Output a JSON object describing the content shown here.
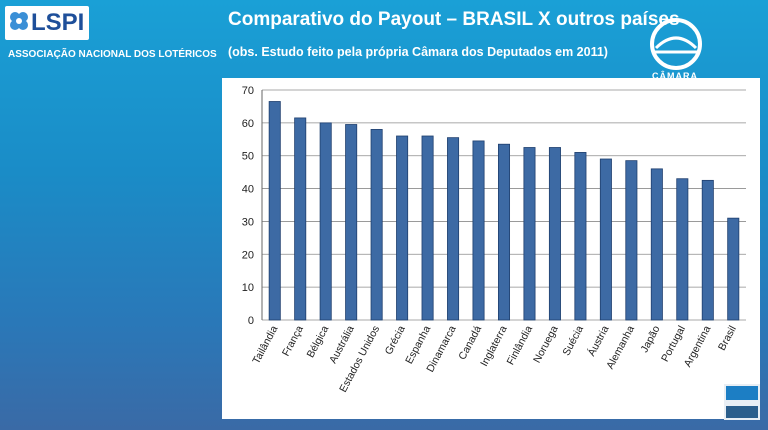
{
  "header": {
    "logo_text": "LSPI",
    "org_name": "ASSOCIAÇÃO NACIONAL DOS LOTÉRICOS",
    "title": "Comparativo do Payout – BRASIL X outros países",
    "subtitle": "(obs. Estudo feito pela própria Câmara dos Deputados em 2011)",
    "camara_label": "CÂMARA"
  },
  "colors": {
    "bar": "#3d6aa4",
    "bar_edge": "#1f3f6e",
    "logo_blue": "#1e4f9a",
    "background": "#1a8cc7"
  },
  "icons": {
    "logo": "clover-icon",
    "camara": "camara-dome-icon",
    "corner": "slide-corner-icon"
  },
  "chart_data": {
    "type": "bar",
    "categories": [
      "Tailândia",
      "França",
      "Bélgica",
      "Austrália",
      "Estados Unidos",
      "Grécia",
      "Espanha",
      "Dinamarca",
      "Canadá",
      "Inglaterra",
      "Finlândia",
      "Noruega",
      "Suécia",
      "Áustria",
      "Alemanha",
      "Japão",
      "Portugal",
      "Argentina",
      "Brasil"
    ],
    "values": [
      66.5,
      61.5,
      60,
      59.5,
      58,
      56,
      56,
      55.5,
      54.5,
      53.5,
      52.5,
      52.5,
      51,
      49,
      48.5,
      46,
      43,
      42.5,
      31
    ],
    "ylim": [
      0,
      70
    ],
    "yticks": [
      0,
      10,
      20,
      30,
      40,
      50,
      60,
      70
    ],
    "grid": true,
    "legend": "none"
  }
}
